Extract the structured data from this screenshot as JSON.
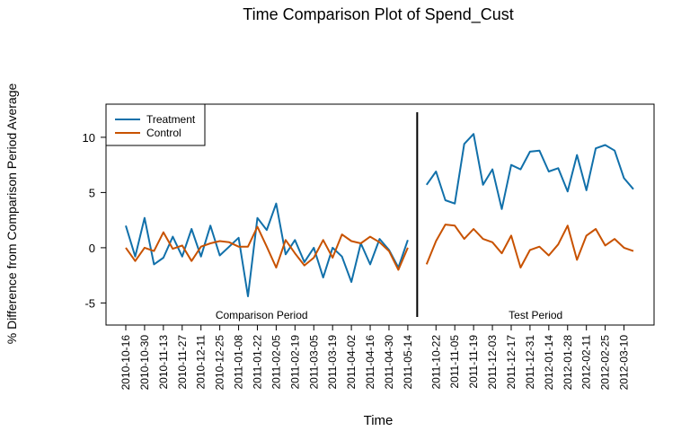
{
  "chart_data": {
    "type": "line",
    "title": "Time Comparison Plot of Spend_Cust",
    "xlabel": "Time",
    "ylabel": "% Difference from Comparison Period Average",
    "ylim": [
      -7.0,
      13.0
    ],
    "y_ticks": [
      -5,
      0,
      5,
      10
    ],
    "grid": false,
    "legend_position": "top-left",
    "periods": [
      {
        "label": "Comparison Period",
        "start_index": 0,
        "end_index": 23
      },
      {
        "label": "Test Period",
        "start_index": 24,
        "end_index": 45
      }
    ],
    "x_tick_labels": [
      "2010-10-16",
      "2010-10-30",
      "2010-11-13",
      "2010-11-27",
      "2010-12-11",
      "2010-12-25",
      "2011-01-08",
      "2011-01-22",
      "2011-02-05",
      "2011-02-19",
      "2011-03-05",
      "2011-03-19",
      "2011-04-02",
      "2011-04-16",
      "2011-04-30",
      "2011-05-14",
      "2011-10-22",
      "2011-11-05",
      "2011-11-19",
      "2011-12-03",
      "2011-12-17",
      "2011-12-31",
      "2012-01-14",
      "2012-01-28",
      "2012-02-11",
      "2012-02-25",
      "2012-03-10"
    ],
    "x_tick_indices": [
      0,
      2,
      4,
      6,
      8,
      10,
      12,
      14,
      16,
      18,
      20,
      22,
      24,
      26,
      28,
      30,
      33,
      35,
      37,
      39,
      41,
      43,
      45,
      47,
      49,
      51,
      53
    ],
    "n_points": 55,
    "divider_after_index": 31,
    "series": [
      {
        "name": "Treatment",
        "color": "#1170aa",
        "segments": [
          {
            "start_index": 0,
            "values": [
              2.0,
              -0.8,
              2.7,
              -1.5,
              -0.9,
              1.0,
              -0.8,
              1.7,
              -0.8,
              2.0,
              -0.7,
              0.1,
              0.9,
              -4.4,
              2.7,
              1.6,
              4.0,
              -0.6,
              0.7,
              -1.3,
              0.0,
              -2.7,
              0.0,
              -0.8,
              -3.1,
              0.4,
              -1.5,
              0.8,
              -0.2,
              -1.8,
              0.7
            ]
          },
          {
            "start_index": 32,
            "values": [
              5.7,
              6.9,
              4.3,
              4.0,
              9.4,
              10.3,
              5.7,
              7.1,
              3.5,
              7.5,
              7.1,
              8.7,
              8.8,
              6.9,
              7.2,
              5.1,
              8.4,
              5.2,
              9.0,
              9.3,
              8.8,
              6.3,
              5.3
            ]
          }
        ]
      },
      {
        "name": "Control",
        "color": "#c85200",
        "segments": [
          {
            "start_index": 0,
            "values": [
              0.0,
              -1.2,
              0.0,
              -0.3,
              1.4,
              -0.1,
              0.2,
              -1.2,
              0.1,
              0.4,
              0.6,
              0.5,
              0.1,
              0.1,
              1.9,
              0.1,
              -1.8,
              0.7,
              -0.5,
              -1.6,
              -0.9,
              0.7,
              -0.9,
              1.2,
              0.6,
              0.4,
              1.0,
              0.5,
              -0.3,
              -2.0,
              0.0
            ]
          },
          {
            "start_index": 32,
            "values": [
              -1.5,
              0.6,
              2.1,
              2.0,
              0.8,
              1.7,
              0.8,
              0.5,
              -0.5,
              1.1,
              -1.8,
              -0.2,
              0.1,
              -0.7,
              0.3,
              2.0,
              -1.1,
              1.1,
              1.7,
              0.2,
              0.8,
              0.0,
              -0.3
            ]
          }
        ]
      }
    ]
  }
}
